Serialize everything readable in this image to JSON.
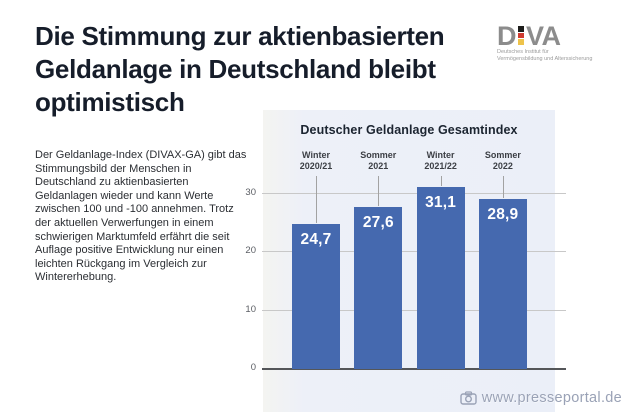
{
  "page": {
    "title": "Die Stimmung zur aktienbasierten Geldanlage in Deutschland bleibt optimistisch"
  },
  "logo": {
    "word_d": "D",
    "word_va": "VA",
    "flag_colors": [
      "#1d1d1b",
      "#cf3b30",
      "#eec34a"
    ],
    "subtitle_line1": "Deutsches Institut für",
    "subtitle_line2": "Vermögensbildung und Alterssicherung"
  },
  "intro": {
    "text": "Der Geldanlage-Index (DIVAX-GA) gibt das Stimmungsbild der Menschen in Deutschland zu aktienbasierten Geldanlagen wieder und kann Werte zwischen 100 und -100 annehmen. Trotz der aktuellen Verwerfungen in einem schwierigen Marktumfeld erfährt die seit Auflage positive Entwicklung nur einen leichten Rückgang im Vergleich zur Wintererhebung."
  },
  "watermark": {
    "icon": "camera-icon",
    "text": "www.presseportal.de"
  },
  "chart_data": {
    "type": "bar",
    "title": "Deutscher Geldanlage Gesamtindex",
    "categories": [
      "Winter 2020/21",
      "Sommer 2021",
      "Winter 2021/22",
      "Sommer 2022"
    ],
    "values": [
      24.7,
      27.6,
      31.1,
      28.9
    ],
    "value_labels": [
      "24,7",
      "27,6",
      "31,1",
      "28,9"
    ],
    "xlabel": "",
    "ylabel": "",
    "ylim": [
      0,
      33
    ],
    "yticks": [
      0,
      10,
      20,
      30
    ],
    "grid": true,
    "legend": false,
    "bar_color": "#4569af",
    "panel_background": "#ebeff8",
    "gridline_color": "#c8c8c8",
    "baseline_color": "#545659"
  }
}
